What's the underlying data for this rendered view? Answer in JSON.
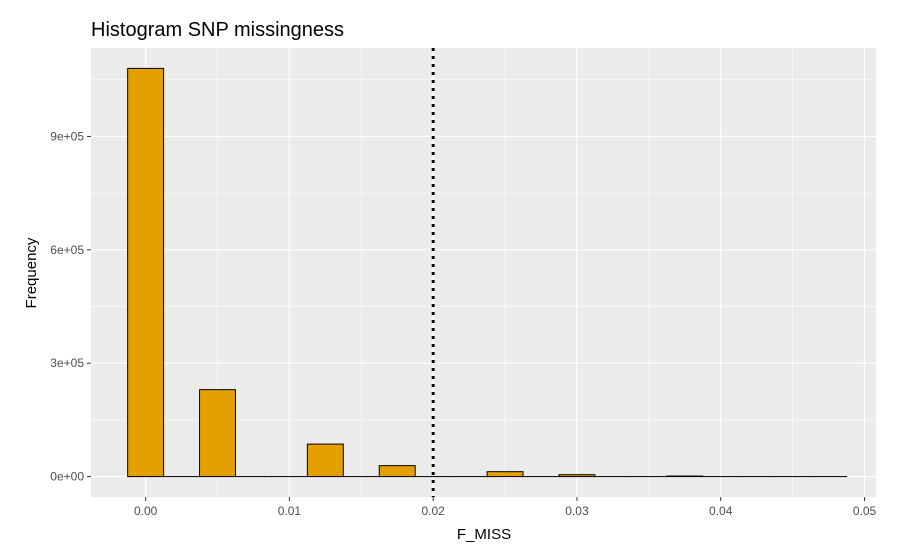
{
  "chart_data": {
    "type": "histogram",
    "title": "Histogram SNP missingness",
    "xlabel": "F_MISS",
    "ylabel": "Frequency",
    "xlim": [
      -0.0038,
      0.0508
    ],
    "ylim": [
      -54000,
      1134000
    ],
    "x_ticks": [
      0.0,
      0.01,
      0.02,
      0.03,
      0.04,
      0.05
    ],
    "x_tick_labels": [
      "0.00",
      "0.01",
      "0.02",
      "0.03",
      "0.04",
      "0.05"
    ],
    "y_ticks": [
      0,
      300000,
      600000,
      900000
    ],
    "y_tick_labels": [
      "0e+00",
      "3e+05",
      "6e+05",
      "9e+05"
    ],
    "bin_width": 0.0025,
    "bins": [
      {
        "x0": -0.00125,
        "x1": 0.00125,
        "count": 1080000
      },
      {
        "x0": 0.00125,
        "x1": 0.00375,
        "count": 0
      },
      {
        "x0": 0.00375,
        "x1": 0.00625,
        "count": 230000
      },
      {
        "x0": 0.00625,
        "x1": 0.00875,
        "count": 0
      },
      {
        "x0": 0.00875,
        "x1": 0.01125,
        "count": 0
      },
      {
        "x0": 0.01125,
        "x1": 0.01375,
        "count": 86000
      },
      {
        "x0": 0.01375,
        "x1": 0.01625,
        "count": 0
      },
      {
        "x0": 0.01625,
        "x1": 0.01875,
        "count": 29000
      },
      {
        "x0": 0.01875,
        "x1": 0.02125,
        "count": 0
      },
      {
        "x0": 0.02125,
        "x1": 0.02375,
        "count": 0
      },
      {
        "x0": 0.02375,
        "x1": 0.02625,
        "count": 13000
      },
      {
        "x0": 0.02625,
        "x1": 0.02875,
        "count": 0
      },
      {
        "x0": 0.02875,
        "x1": 0.03125,
        "count": 5000
      },
      {
        "x0": 0.03125,
        "x1": 0.03375,
        "count": 0
      },
      {
        "x0": 0.03375,
        "x1": 0.03625,
        "count": 0
      },
      {
        "x0": 0.03625,
        "x1": 0.03875,
        "count": 1500
      },
      {
        "x0": 0.03875,
        "x1": 0.04125,
        "count": 0
      },
      {
        "x0": 0.04125,
        "x1": 0.04375,
        "count": 0
      },
      {
        "x0": 0.04375,
        "x1": 0.04625,
        "count": 0
      },
      {
        "x0": 0.04625,
        "x1": 0.04875,
        "count": 0
      }
    ],
    "vline": {
      "x": 0.02,
      "style": "dotted",
      "color": "#000000"
    },
    "colors": {
      "bar_fill": "#E69F00",
      "bar_stroke": "#000000",
      "panel_bg": "#EBEBEB",
      "grid": "#FFFFFF"
    },
    "grid": true,
    "legend": "none"
  }
}
